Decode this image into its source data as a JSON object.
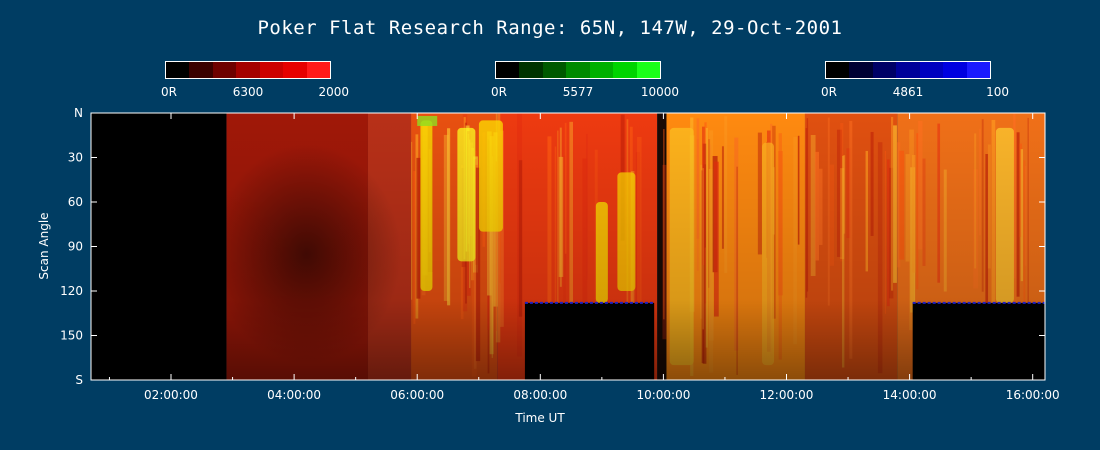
{
  "chart_data": {
    "type": "heatmap",
    "title": "Poker Flat Research Range: 65N, 147W, 29-Oct-2001",
    "xlabel": "Time UT",
    "ylabel": "Scan Angle",
    "x_ticks": [
      "02:00:00",
      "04:00:00",
      "06:00:00",
      "08:00:00",
      "10:00:00",
      "12:00:00",
      "14:00:00",
      "16:00:00"
    ],
    "x_tick_hours": [
      2,
      4,
      6,
      8,
      10,
      12,
      14,
      16
    ],
    "xlim_hours": [
      0.7,
      16.2
    ],
    "y_ticks": [
      "N",
      "30",
      "60",
      "90",
      "120",
      "150",
      "S"
    ],
    "y_tick_values": [
      0,
      30,
      60,
      90,
      120,
      150,
      180
    ],
    "ylim": [
      0,
      180
    ],
    "colorbars": [
      {
        "left_label": "0R",
        "mid_label": "6300",
        "right_label": "2000",
        "colors": [
          "#000000",
          "#3a0000",
          "#6e0000",
          "#a30000",
          "#cc0000",
          "#e60000",
          "#ff1a1a"
        ]
      },
      {
        "left_label": "0R",
        "mid_label": "5577",
        "right_label": "10000",
        "colors": [
          "#000000",
          "#003300",
          "#005900",
          "#008a00",
          "#00b000",
          "#00d400",
          "#1aff1a"
        ]
      },
      {
        "left_label": "0R",
        "mid_label": "4861",
        "right_label": "100",
        "colors": [
          "#000000",
          "#000033",
          "#000066",
          "#000099",
          "#0000bf",
          "#0000e0",
          "#1a1aff"
        ]
      }
    ],
    "no_data_regions": [
      {
        "t_start": 0.7,
        "t_end": 2.9,
        "angle_start": 0,
        "angle_end": 180
      },
      {
        "t_start": 7.75,
        "t_end": 9.85,
        "angle_start": 128,
        "angle_end": 180
      },
      {
        "t_start": 14.05,
        "t_end": 16.2,
        "angle_start": 128,
        "angle_end": 180
      }
    ],
    "emission_bands": [
      {
        "t_start": 2.9,
        "t_end": 5.2,
        "color": "#a01808"
      },
      {
        "t_start": 5.2,
        "t_end": 5.9,
        "color": "#b83018"
      },
      {
        "t_start": 5.9,
        "t_end": 7.3,
        "color": "#e85010"
      },
      {
        "t_start": 7.3,
        "t_end": 9.9,
        "color": "#ee3a10"
      },
      {
        "t_start": 9.9,
        "t_end": 10.05,
        "color": "#1a0a05"
      },
      {
        "t_start": 10.05,
        "t_end": 12.3,
        "color": "#ff8a10"
      },
      {
        "t_start": 12.3,
        "t_end": 13.8,
        "color": "#e05010"
      },
      {
        "t_start": 13.8,
        "t_end": 16.2,
        "color": "#f07018"
      }
    ],
    "bright_features": [
      {
        "t": 6.15,
        "angle_start": 5,
        "angle_end": 120,
        "color": "#ffee00"
      },
      {
        "t": 6.75,
        "angle_start": 10,
        "angle_end": 100,
        "color": "#ffff20"
      },
      {
        "t": 7.1,
        "angle_start": 5,
        "angle_end": 80,
        "color": "#ffe000"
      },
      {
        "t": 9.0,
        "angle_start": 60,
        "angle_end": 128,
        "color": "#ffe800"
      },
      {
        "t": 9.35,
        "angle_start": 40,
        "angle_end": 120,
        "color": "#ffd800"
      },
      {
        "t": 10.2,
        "angle_start": 10,
        "angle_end": 170,
        "color": "#ffc020"
      },
      {
        "t": 11.7,
        "angle_start": 20,
        "angle_end": 170,
        "color": "#ffb020"
      },
      {
        "t": 15.5,
        "angle_start": 10,
        "angle_end": 128,
        "color": "#ffcc30"
      }
    ]
  }
}
